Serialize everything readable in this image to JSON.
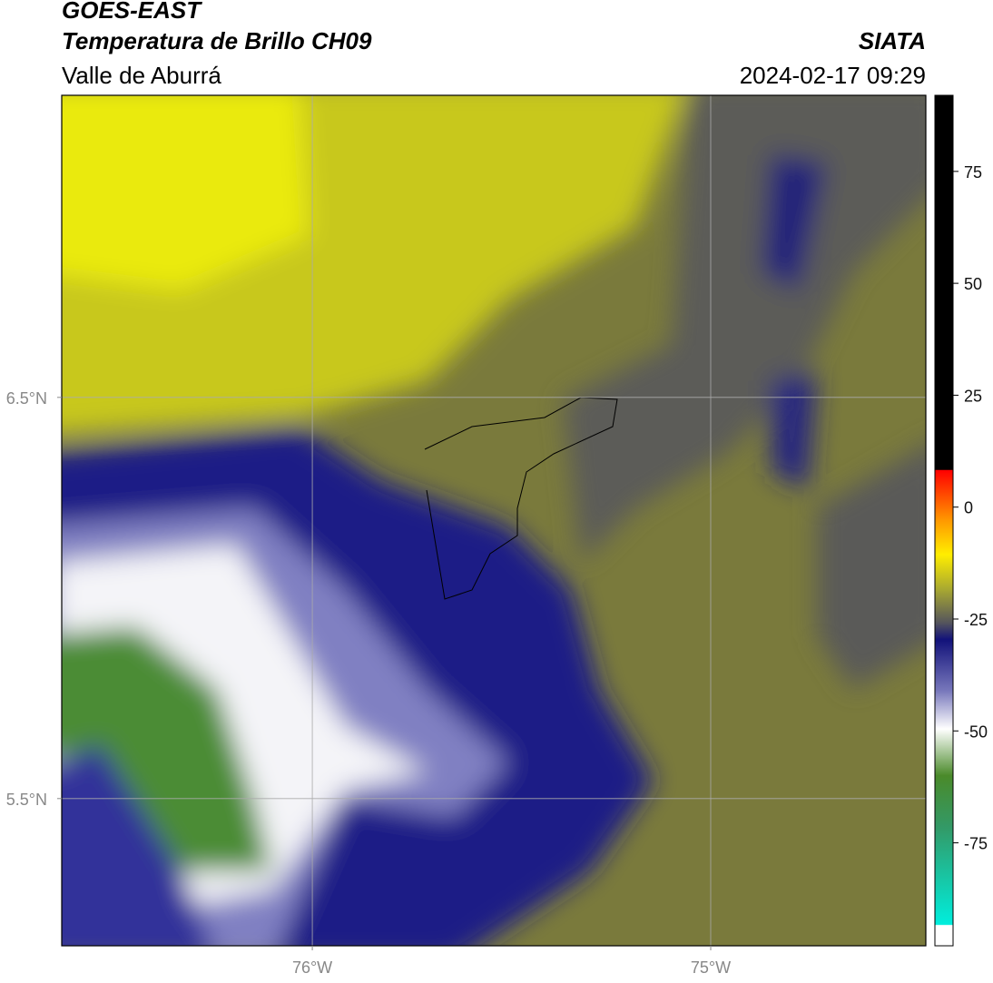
{
  "header": {
    "line1": "GOES-EAST",
    "title": "Temperatura de Brillo CH09",
    "region": "Valle de Aburrá",
    "agency": "SIATA",
    "timestamp": "2024-02-17 09:29"
  },
  "map": {
    "xlim": [
      -76.629,
      -74.46
    ],
    "ylim": [
      5.133,
      7.253
    ],
    "xticks": [
      {
        "value": -76,
        "label": "76°W"
      },
      {
        "value": -75,
        "label": "75°W"
      }
    ],
    "yticks": [
      {
        "value": 6.5,
        "label": "6.5°N"
      },
      {
        "value": 5.5,
        "label": "5.5°N"
      }
    ],
    "grid": true,
    "colorbar": {
      "lim": [
        -98,
        92
      ],
      "ticks": [
        75,
        50,
        25,
        0,
        -25,
        -50,
        -75
      ]
    }
  }
}
